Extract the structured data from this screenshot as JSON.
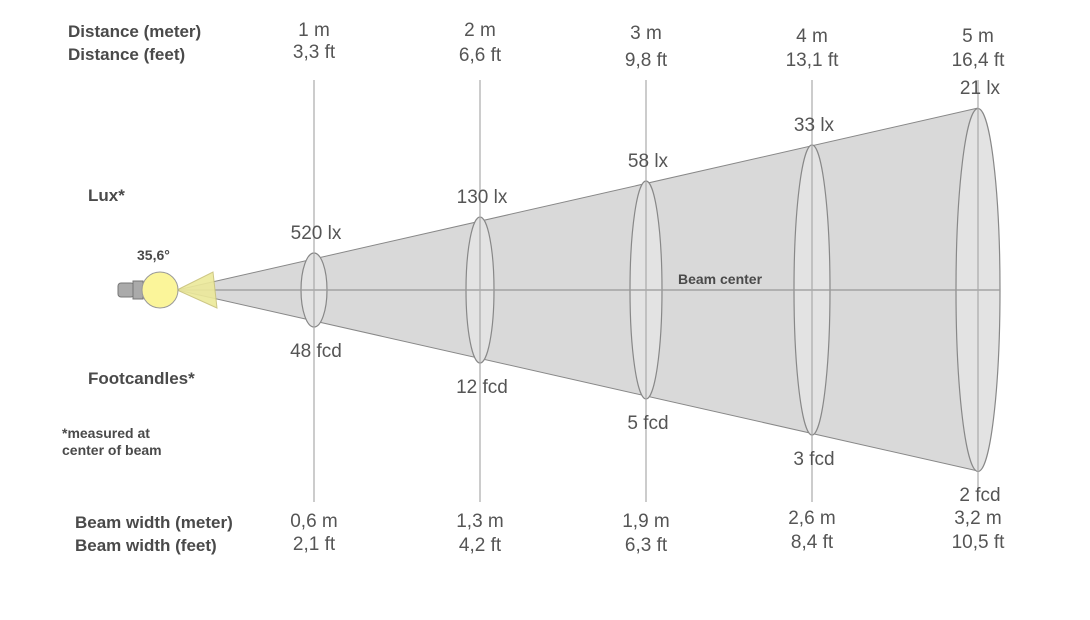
{
  "labels": {
    "distance_m": "Distance (meter)",
    "distance_ft": "Distance (feet)",
    "lux": "Lux*",
    "footcandles": "Footcandles*",
    "note_line1": "*measured at",
    "note_line2": "center of beam",
    "beam_width_m": "Beam width (meter)",
    "beam_width_ft": "Beam width (feet)",
    "beam_center": "Beam center",
    "beam_angle": "35,6°"
  },
  "colors": {
    "cone": "#d9d9d9",
    "bulb": "#fbf59a",
    "inner_beam": "#ece99a",
    "line": "#999999"
  },
  "columns": [
    {
      "dist_m": "1 m",
      "dist_ft": "3,3 ft",
      "lux": "520 lx",
      "fcd": "48 fcd",
      "width_m": "0,6 m",
      "width_ft": "2,1 ft"
    },
    {
      "dist_m": "2 m",
      "dist_ft": "6,6 ft",
      "lux": "130 lx",
      "fcd": "12 fcd",
      "width_m": "1,3 m",
      "width_ft": "4,2 ft"
    },
    {
      "dist_m": "3 m",
      "dist_ft": "9,8 ft",
      "lux": "58 lx",
      "fcd": "5 fcd",
      "width_m": "1,9 m",
      "width_ft": "6,3 ft"
    },
    {
      "dist_m": "4 m",
      "dist_ft": "13,1 ft",
      "lux": "33 lx",
      "fcd": "3 fcd",
      "width_m": "2,6 m",
      "width_ft": "8,4 ft"
    },
    {
      "dist_m": "5 m",
      "dist_ft": "16,4 ft",
      "lux": "21 lx",
      "fcd": "2 fcd",
      "width_m": "3,2 m",
      "width_ft": "10,5 ft"
    }
  ]
}
